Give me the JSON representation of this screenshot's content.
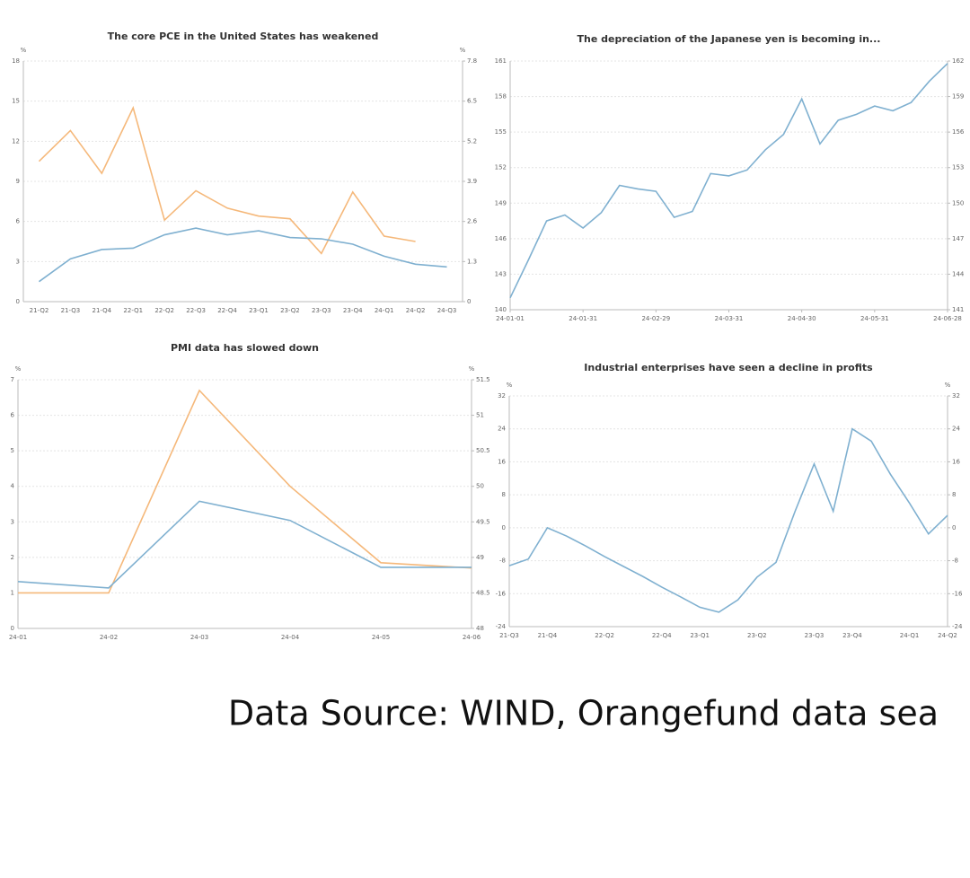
{
  "chart_data": [
    {
      "type": "line",
      "title": "The core PCE in the United States has weakened",
      "y_label": "%",
      "y2_label": "%",
      "categories": [
        "21-Q2",
        "21-Q3",
        "21-Q4",
        "22-Q1",
        "22-Q2",
        "22-Q3",
        "22-Q4",
        "23-Q1",
        "23-Q2",
        "23-Q3",
        "23-Q4",
        "24-Q1",
        "24-Q2",
        "24-Q3"
      ],
      "series": [
        {
          "color": "#f5b87a",
          "values": [
            10.5,
            12.8,
            9.6,
            14.5,
            6.1,
            8.3,
            7.0,
            6.4,
            6.2,
            3.6,
            8.2,
            4.9,
            4.5,
            null
          ]
        },
        {
          "color": "#7fb0d0",
          "values": [
            1.5,
            3.2,
            3.9,
            4.0,
            5.0,
            5.5,
            5.0,
            5.3,
            4.8,
            4.7,
            4.3,
            3.4,
            2.8,
            2.6
          ]
        }
      ],
      "ylim": [
        0,
        18
      ],
      "yticks": [
        0,
        3,
        6,
        9,
        12,
        15,
        18
      ],
      "y2lim": [
        0,
        7.8
      ],
      "y2ticks": [
        0,
        1.3,
        2.6,
        3.9,
        5.2,
        6.5,
        7.8
      ],
      "grid": true
    },
    {
      "type": "line",
      "title": "The depreciation of the Japanese yen is becoming in...",
      "x": [
        "24-01-01",
        "24-01-08",
        "24-01-15",
        "24-01-22",
        "24-01-31",
        "24-02-07",
        "24-02-14",
        "24-02-21",
        "24-02-29",
        "24-03-07",
        "24-03-14",
        "24-03-21",
        "24-03-31",
        "24-04-07",
        "24-04-14",
        "24-04-21",
        "24-04-30",
        "24-05-07",
        "24-05-14",
        "24-05-21",
        "24-05-31",
        "24-06-07",
        "24-06-14",
        "24-06-21",
        "24-06-28"
      ],
      "xticks": [
        "24-01-01",
        "24-01-31",
        "24-02-29",
        "24-03-31",
        "24-04-30",
        "24-05-31",
        "24-06-28"
      ],
      "series": [
        {
          "color": "#7fb0d0",
          "values": [
            141.0,
            144.2,
            147.5,
            148.0,
            146.9,
            148.2,
            150.5,
            150.2,
            150.0,
            147.8,
            148.3,
            151.5,
            151.3,
            151.8,
            153.5,
            154.8,
            157.8,
            154.0,
            156.0,
            156.5,
            157.2,
            156.8,
            157.5,
            159.3,
            160.8
          ]
        }
      ],
      "ylim": [
        140,
        161
      ],
      "yticks": [
        140,
        143,
        146,
        149,
        152,
        155,
        158,
        161
      ],
      "y2lim": [
        141,
        162
      ],
      "y2ticks": [
        141,
        144,
        147,
        150,
        153,
        156,
        159,
        162
      ],
      "grid": true
    },
    {
      "type": "line",
      "title": "PMI data has slowed down",
      "y_label": "%",
      "y2_label": "%",
      "categories": [
        "24-01",
        "24-02",
        "24-03",
        "24-04",
        "24-05",
        "24-06"
      ],
      "series": [
        {
          "color": "#f5b87a",
          "values": [
            1.0,
            1.0,
            6.7,
            4.0,
            1.85,
            1.7
          ]
        },
        {
          "color": "#7fb0d0",
          "axis": "y2",
          "values": [
            48.66,
            48.57,
            49.79,
            49.52,
            48.86,
            48.86
          ]
        }
      ],
      "ylim": [
        0,
        7
      ],
      "yticks": [
        0,
        1,
        2,
        3,
        4,
        5,
        6,
        7
      ],
      "y2lim": [
        48,
        51.5
      ],
      "y2ticks": [
        48,
        48.5,
        49,
        49.5,
        50,
        50.5,
        51,
        51.5
      ],
      "grid": true
    },
    {
      "type": "line",
      "title": "Industrial enterprises have seen a decline in profits",
      "y_label": "%",
      "y2_label": "%",
      "categories": [
        "21-Q3",
        null,
        "21-Q4",
        null,
        null,
        "22-Q2",
        null,
        null,
        "22-Q4",
        null,
        "23-Q1",
        null,
        null,
        "23-Q2",
        null,
        null,
        "23-Q3",
        null,
        "23-Q4",
        null,
        null,
        "24-Q1",
        null,
        "24-Q2"
      ],
      "series": [
        {
          "color": "#7fb0d0",
          "values": [
            -9.2,
            -7.6,
            0,
            -2,
            -4.4,
            -7,
            -9.4,
            -11.8,
            -14.4,
            -16.8,
            -19.3,
            -20.5,
            -17.5,
            -12,
            -8.4,
            4,
            15.5,
            4,
            24,
            21,
            13,
            6,
            -1.5,
            3
          ]
        }
      ],
      "ylim": [
        -24,
        32
      ],
      "yticks": [
        -24,
        -16,
        -8,
        0,
        8,
        16,
        24,
        32
      ],
      "y2lim": [
        -24,
        32
      ],
      "y2ticks": [
        -24,
        -16,
        -8,
        0,
        8,
        16,
        24,
        32
      ],
      "grid": true
    }
  ],
  "source": "Data Source: WIND, Orangefund data sea"
}
